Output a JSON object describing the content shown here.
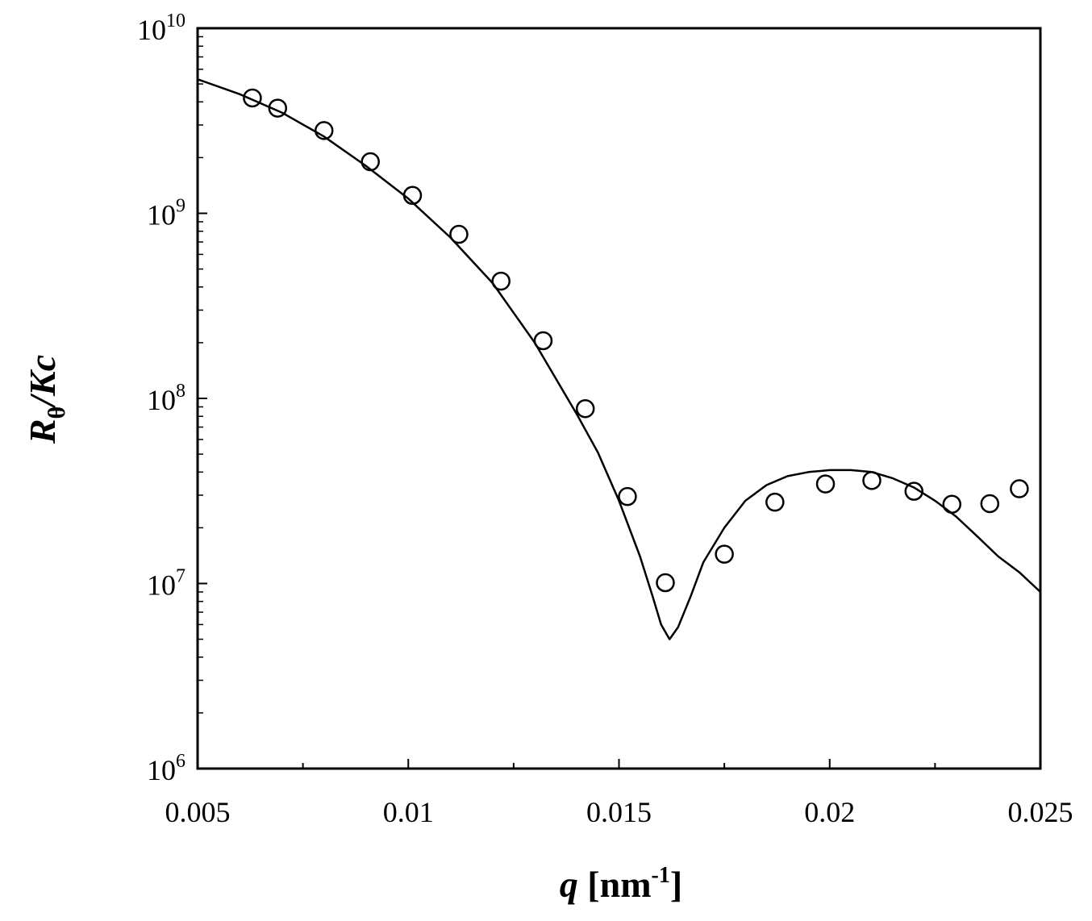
{
  "chart_data": {
    "type": "scatter",
    "xlabel": {
      "var": "q",
      "unit_open": " [nm",
      "unit_exp": "-1",
      "unit_close": "]"
    },
    "ylabel": {
      "main": "R",
      "sub": "θ",
      "rest": "/Kc"
    },
    "xlim": [
      0.005,
      0.025
    ],
    "ylim": [
      1000000,
      10000000000
    ],
    "yscale": "log",
    "grid": false,
    "x_ticks": [
      {
        "value": 0.005,
        "label": "0.005"
      },
      {
        "value": 0.01,
        "label": "0.01"
      },
      {
        "value": 0.015,
        "label": "0.015"
      },
      {
        "value": 0.02,
        "label": "0.02"
      },
      {
        "value": 0.025,
        "label": "0.025"
      }
    ],
    "y_ticks": [
      {
        "value": 1000000,
        "base": "10",
        "exp": "6"
      },
      {
        "value": 10000000,
        "base": "10",
        "exp": "7"
      },
      {
        "value": 100000000,
        "base": "10",
        "exp": "8"
      },
      {
        "value": 1000000000,
        "base": "10",
        "exp": "9"
      },
      {
        "value": 10000000000,
        "base": "10",
        "exp": "10"
      }
    ],
    "series": [
      {
        "kind": "markers",
        "marker": "open-circle",
        "x": [
          0.0063,
          0.0069,
          0.008,
          0.0091,
          0.0101,
          0.0112,
          0.0122,
          0.0132,
          0.0142,
          0.0152,
          0.0161,
          0.0175,
          0.0187,
          0.0199,
          0.021,
          0.022,
          0.0229,
          0.0238,
          0.0245
        ],
        "y": [
          4200000000.0,
          3700000000.0,
          2800000000.0,
          1900000000.0,
          1250000000.0,
          770000000.0,
          430000000.0,
          205000000.0,
          88000000.0,
          29500000.0,
          10100000.0,
          14400000.0,
          27500000.0,
          34500000.0,
          36000000.0,
          31500000.0,
          26800000.0,
          27000000.0,
          32500000.0
        ]
      },
      {
        "kind": "line",
        "marker": "none",
        "x": [
          0.005,
          0.006,
          0.007,
          0.008,
          0.009,
          0.01,
          0.011,
          0.012,
          0.013,
          0.014,
          0.0145,
          0.015,
          0.0155,
          0.0158,
          0.016,
          0.0162,
          0.0164,
          0.0167,
          0.017,
          0.0175,
          0.018,
          0.0185,
          0.019,
          0.0195,
          0.02,
          0.0205,
          0.021,
          0.0215,
          0.022,
          0.0225,
          0.023,
          0.0235,
          0.024,
          0.0245,
          0.025
        ],
        "y": [
          5300000000.0,
          4400000000.0,
          3500000000.0,
          2600000000.0,
          1800000000.0,
          1200000000.0,
          740000000.0,
          420000000.0,
          200000000.0,
          82000000.0,
          51000000.0,
          28000000.0,
          14000000.0,
          8500000.0,
          6000000.0,
          5000000.0,
          5800000.0,
          8500000.0,
          13000000.0,
          20000000.0,
          28000000.0,
          34000000.0,
          38000000.0,
          40000000.0,
          41000000.0,
          41000000.0,
          40000000.0,
          37000000.0,
          33000000.0,
          28000000.0,
          23000000.0,
          18000000.0,
          14000000.0,
          11500000.0,
          9000000.0
        ]
      }
    ]
  }
}
